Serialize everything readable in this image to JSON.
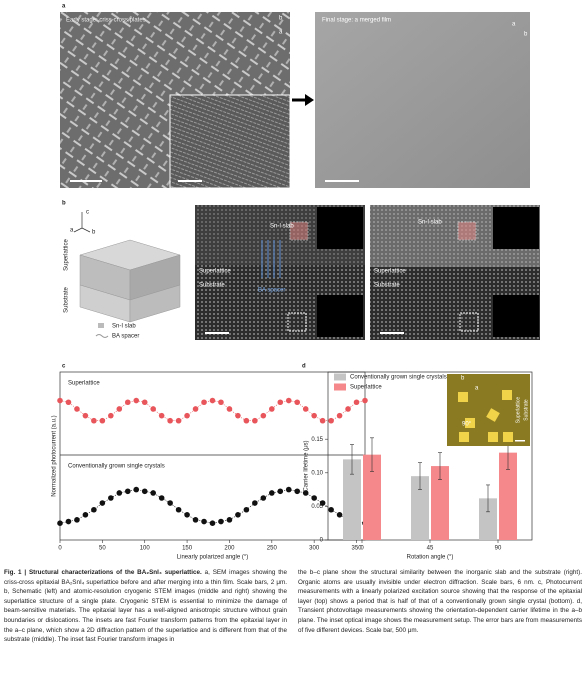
{
  "panels": {
    "a": {
      "label": "a",
      "left_title": "Early stage: criss-cross plates",
      "right_title": "Final stage: a merged film",
      "axis_a": "a",
      "axis_b": "b"
    },
    "b": {
      "label": "b",
      "axis_c": "c",
      "axis_a": "a",
      "axis_b": "b",
      "side_superlattice": "Superlattice",
      "side_substrate": "Substrate",
      "legend_slab": "Sn-I slab",
      "legend_spacer": "BA spacer",
      "stem_slab": "Sn-I slab",
      "stem_spacer": "BA spacer",
      "stem_superlattice": "Superlattice",
      "stem_substrate": "Substrate",
      "stem2_slab": "Sn-I slab",
      "stem2_superlattice": "Superlattice",
      "stem2_substrate": "Substrate"
    },
    "c": {
      "label": "c"
    },
    "d": {
      "label": "d",
      "inset_b": "b",
      "inset_a": "a",
      "inset_angle": "90°",
      "inset_superlattice": "Superlattice",
      "inset_substrate": "Substrate"
    }
  },
  "chart_data": [
    {
      "type": "line",
      "ylabel": "Normalized photocurrent (a.u.)",
      "xlabel": "Linearly polarized angle (°)",
      "x": [
        0,
        10,
        20,
        30,
        40,
        50,
        60,
        70,
        80,
        90,
        100,
        110,
        120,
        130,
        140,
        150,
        160,
        170,
        180,
        190,
        200,
        210,
        220,
        230,
        240,
        250,
        260,
        270,
        280,
        290,
        300,
        310,
        320,
        330,
        340,
        350,
        360
      ],
      "xlim": [
        0,
        360
      ],
      "xticks": [
        0,
        50,
        100,
        150,
        200,
        250,
        300,
        350
      ],
      "ylim": [
        0,
        10
      ],
      "series": [
        {
          "name": "Superlattice",
          "color": "#e8565b",
          "values": [
            8.3,
            8.2,
            7.8,
            7.4,
            7.1,
            7.1,
            7.4,
            7.8,
            8.2,
            8.3,
            8.2,
            7.8,
            7.4,
            7.1,
            7.1,
            7.4,
            7.8,
            8.2,
            8.3,
            8.2,
            7.8,
            7.4,
            7.1,
            7.1,
            7.4,
            7.8,
            8.2,
            8.3,
            8.2,
            7.8,
            7.4,
            7.1,
            7.1,
            7.4,
            7.8,
            8.2,
            8.3
          ]
        },
        {
          "name": "Conventionally grown single crystals",
          "color": "#111111",
          "values": [
            1.0,
            1.1,
            1.2,
            1.5,
            1.8,
            2.2,
            2.5,
            2.8,
            2.9,
            3.0,
            2.9,
            2.8,
            2.5,
            2.2,
            1.8,
            1.5,
            1.2,
            1.1,
            1.0,
            1.1,
            1.2,
            1.5,
            1.8,
            2.2,
            2.5,
            2.8,
            2.9,
            3.0,
            2.9,
            2.8,
            2.5,
            2.2,
            1.8,
            1.5,
            1.2,
            1.1,
            1.0
          ]
        }
      ]
    },
    {
      "type": "bar",
      "ylabel": "Carrier lifetime (μs)",
      "xlabel": "Rotation angle (°)",
      "categories": [
        "0",
        "45",
        "90"
      ],
      "ylim": [
        0,
        0.25
      ],
      "yticks": [
        0,
        0.05,
        {
          "value": 0.1,
          "label": "0.10"
        },
        0.15
      ],
      "series": [
        {
          "name": "Conventionally grown single crystals",
          "color": "#c4c4c4",
          "values": [
            0.12,
            0.095,
            0.062
          ],
          "errors": [
            0.022,
            0.02,
            0.02
          ]
        },
        {
          "name": "Superlattice",
          "color": "#f4888b",
          "values": [
            0.127,
            0.11,
            0.13
          ],
          "errors": [
            0.025,
            0.02,
            0.025
          ]
        }
      ]
    }
  ],
  "caption": {
    "title": "Fig. 1 | Structural characterizations of the BA₂SnI₄ superlattice.",
    "left": " a, SEM images showing the criss-cross epitaxial BA₂SnI₄ superlattice before and after merging into a thin film. Scale bars, 2 μm. b, Schematic (left) and atomic-resolution cryogenic STEM images (middle and right) showing the superlattice structure of a single plate. Cryogenic STEM is essential to minimize the damage of beam-sensitive materials. The epitaxial layer has a well-aligned anisotropic structure without grain boundaries or dislocations. The insets are fast Fourier transform patterns from the epitaxial layer in the a–c plane, which show a 2D diffraction pattern of the superlattice and is different from that of the substrate (middle). The inset fast Fourier transform images in",
    "right": "the b–c plane show the structural similarity between the inorganic slab and the substrate (right). Organic atoms are usually invisible under electron diffraction. Scale bars, 6 nm. c, Photocurrent measurements with a linearly polarized excitation source showing that the response of the epitaxial layer (top) shows a period that is half of that of a conventionally grown single crystal (bottom). d, Transient photovoltage measurements showing the orientation-dependent carrier lifetime in the a–b plane. The inset optical image shows the measurement setup. The error bars are from measurements of five different devices. Scale bar, 500 μm."
  }
}
